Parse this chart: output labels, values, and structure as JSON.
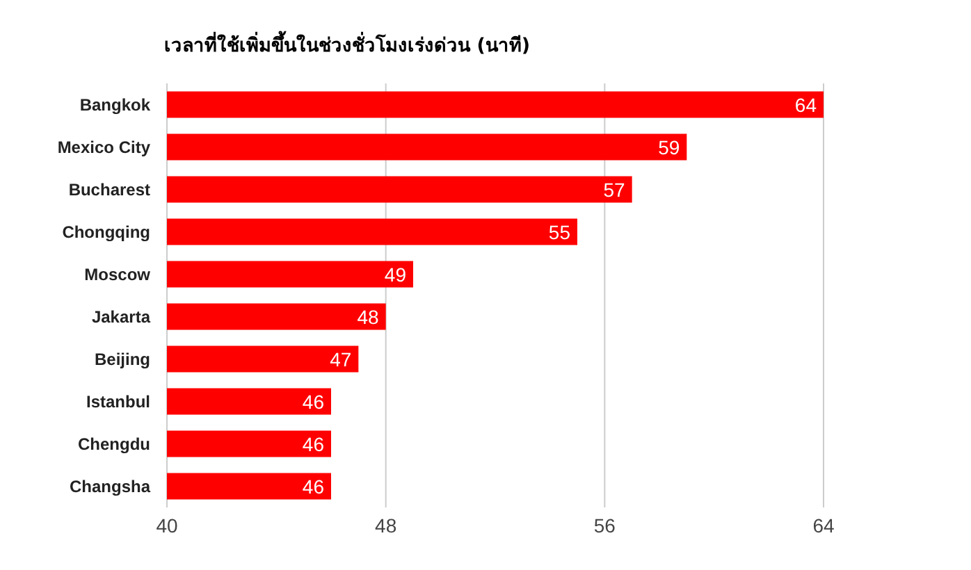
{
  "chart_data": {
    "type": "bar",
    "orientation": "horizontal",
    "title": "เวลาที่ใช้เพิ่มขึ้นในช่วงชั่วโมงเร่งด่วน (นาที)",
    "categories": [
      "Bangkok",
      "Mexico City",
      "Bucharest",
      "Chongqing",
      "Moscow",
      "Jakarta",
      "Beijing",
      "Istanbul",
      "Chengdu",
      "Changsha"
    ],
    "values": [
      64,
      59,
      57,
      55,
      49,
      48,
      47,
      46,
      46,
      46
    ],
    "color": "#ff0000",
    "xlim": [
      40,
      64
    ],
    "xticks": [
      40,
      48,
      56,
      64
    ],
    "grid": "x",
    "data_labels": true
  }
}
